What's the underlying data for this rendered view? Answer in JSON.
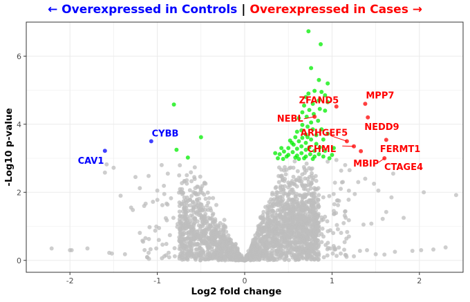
{
  "header": {
    "left": "← Overexpressed in Controls",
    "sep": "|",
    "right": "Overexpressed in Cases →"
  },
  "colors": {
    "left": "#0000ff",
    "right": "#ff0000",
    "significant": "#00ee00",
    "background": "#bebebe",
    "grid": "#ebebeb"
  },
  "chart_data": {
    "type": "scatter",
    "title": "← Overexpressed in Controls | Overexpressed in Cases →",
    "xlabel": "Log2 fold change",
    "ylabel": "-Log10 p-value",
    "xlim": [
      -2.5,
      2.5
    ],
    "ylim": [
      -0.35,
      7.0
    ],
    "x_ticks": [
      -2,
      -1,
      0,
      1,
      2
    ],
    "y_ticks": [
      0,
      2,
      4,
      6
    ],
    "grid": true,
    "labeled_genes": [
      {
        "name": "CAV1",
        "x": -1.6,
        "y": 3.22,
        "group": "controls",
        "lx": -1.76,
        "ly": 2.94
      },
      {
        "name": "CYBB",
        "x": -1.07,
        "y": 3.5,
        "group": "controls",
        "lx": -0.91,
        "ly": 3.74
      },
      {
        "name": "ZFAND5",
        "x": 1.05,
        "y": 4.52,
        "group": "cases",
        "lx": 0.85,
        "ly": 4.72
      },
      {
        "name": "MPP7",
        "x": 1.38,
        "y": 4.6,
        "group": "cases",
        "lx": 1.55,
        "ly": 4.86
      },
      {
        "name": "NEBL",
        "x": 0.8,
        "y": 4.22,
        "group": "cases",
        "lx": 0.52,
        "ly": 4.18
      },
      {
        "name": "NEDD9",
        "x": 1.41,
        "y": 4.2,
        "group": "cases",
        "lx": 1.57,
        "ly": 3.93
      },
      {
        "name": "ARHGEF5",
        "x": 1.17,
        "y": 3.5,
        "group": "cases",
        "lx": 0.91,
        "ly": 3.76
      },
      {
        "name": "CHML",
        "x": 1.25,
        "y": 3.35,
        "group": "cases",
        "lx": 0.88,
        "ly": 3.28
      },
      {
        "name": "FERMT1",
        "x": 1.62,
        "y": 3.54,
        "group": "cases",
        "lx": 1.78,
        "ly": 3.28
      },
      {
        "name": "MBIP",
        "x": 1.33,
        "y": 3.21,
        "group": "cases",
        "lx": 1.39,
        "ly": 2.86
      },
      {
        "name": "CTAGE4",
        "x": 1.6,
        "y": 3.0,
        "group": "cases",
        "lx": 1.82,
        "ly": 2.76
      }
    ],
    "significant_points": [
      [
        0.73,
        6.73
      ],
      [
        0.87,
        6.35
      ],
      [
        0.76,
        5.65
      ],
      [
        0.85,
        5.3
      ],
      [
        0.95,
        5.2
      ],
      [
        0.8,
        4.98
      ],
      [
        0.88,
        4.95
      ],
      [
        0.73,
        4.9
      ],
      [
        0.92,
        4.85
      ],
      [
        0.7,
        4.8
      ],
      [
        0.85,
        4.7
      ],
      [
        0.95,
        4.65
      ],
      [
        0.78,
        4.6
      ],
      [
        0.68,
        4.55
      ],
      [
        0.86,
        4.45
      ],
      [
        0.74,
        4.42
      ],
      [
        0.92,
        4.4
      ],
      [
        0.66,
        4.35
      ],
      [
        0.79,
        4.3
      ],
      [
        0.71,
        4.22
      ],
      [
        0.62,
        4.18
      ],
      [
        0.84,
        4.1
      ],
      [
        0.76,
        4.05
      ],
      [
        0.66,
        3.98
      ],
      [
        0.72,
        3.93
      ],
      [
        0.78,
        3.85
      ],
      [
        0.88,
        3.85
      ],
      [
        0.65,
        3.82
      ],
      [
        0.6,
        3.78
      ],
      [
        0.95,
        3.72
      ],
      [
        0.7,
        3.7
      ],
      [
        0.82,
        3.68
      ],
      [
        0.58,
        3.62
      ],
      [
        0.66,
        3.6
      ],
      [
        0.76,
        3.55
      ],
      [
        0.9,
        3.55
      ],
      [
        0.52,
        3.52
      ],
      [
        0.62,
        3.5
      ],
      [
        0.7,
        3.45
      ],
      [
        0.82,
        3.42
      ],
      [
        0.56,
        3.4
      ],
      [
        0.65,
        3.35
      ],
      [
        0.74,
        3.32
      ],
      [
        0.86,
        3.32
      ],
      [
        0.5,
        3.3
      ],
      [
        0.6,
        3.28
      ],
      [
        0.7,
        3.25
      ],
      [
        0.8,
        3.22
      ],
      [
        0.92,
        3.22
      ],
      [
        0.45,
        3.2
      ],
      [
        0.55,
        3.18
      ],
      [
        0.65,
        3.15
      ],
      [
        0.75,
        3.12
      ],
      [
        0.85,
        3.12
      ],
      [
        0.4,
        3.12
      ],
      [
        0.5,
        3.1
      ],
      [
        0.6,
        3.08
      ],
      [
        0.7,
        3.05
      ],
      [
        0.8,
        3.05
      ],
      [
        0.9,
        3.05
      ],
      [
        0.48,
        3.05
      ],
      [
        0.58,
        3.02
      ],
      [
        0.68,
        3.0
      ],
      [
        0.78,
        2.98
      ],
      [
        0.62,
        2.98
      ],
      [
        0.35,
        3.15
      ],
      [
        0.42,
        3.3
      ],
      [
        0.54,
        3.45
      ],
      [
        0.72,
        3.62
      ],
      [
        1.02,
        3.3
      ],
      [
        1.0,
        3.1
      ],
      [
        0.97,
        3.0
      ],
      [
        0.38,
        3.0
      ],
      [
        0.44,
        2.98
      ],
      [
        -0.81,
        4.58
      ],
      [
        -0.5,
        3.62
      ],
      [
        -0.78,
        3.25
      ],
      [
        -0.65,
        3.02
      ]
    ]
  }
}
